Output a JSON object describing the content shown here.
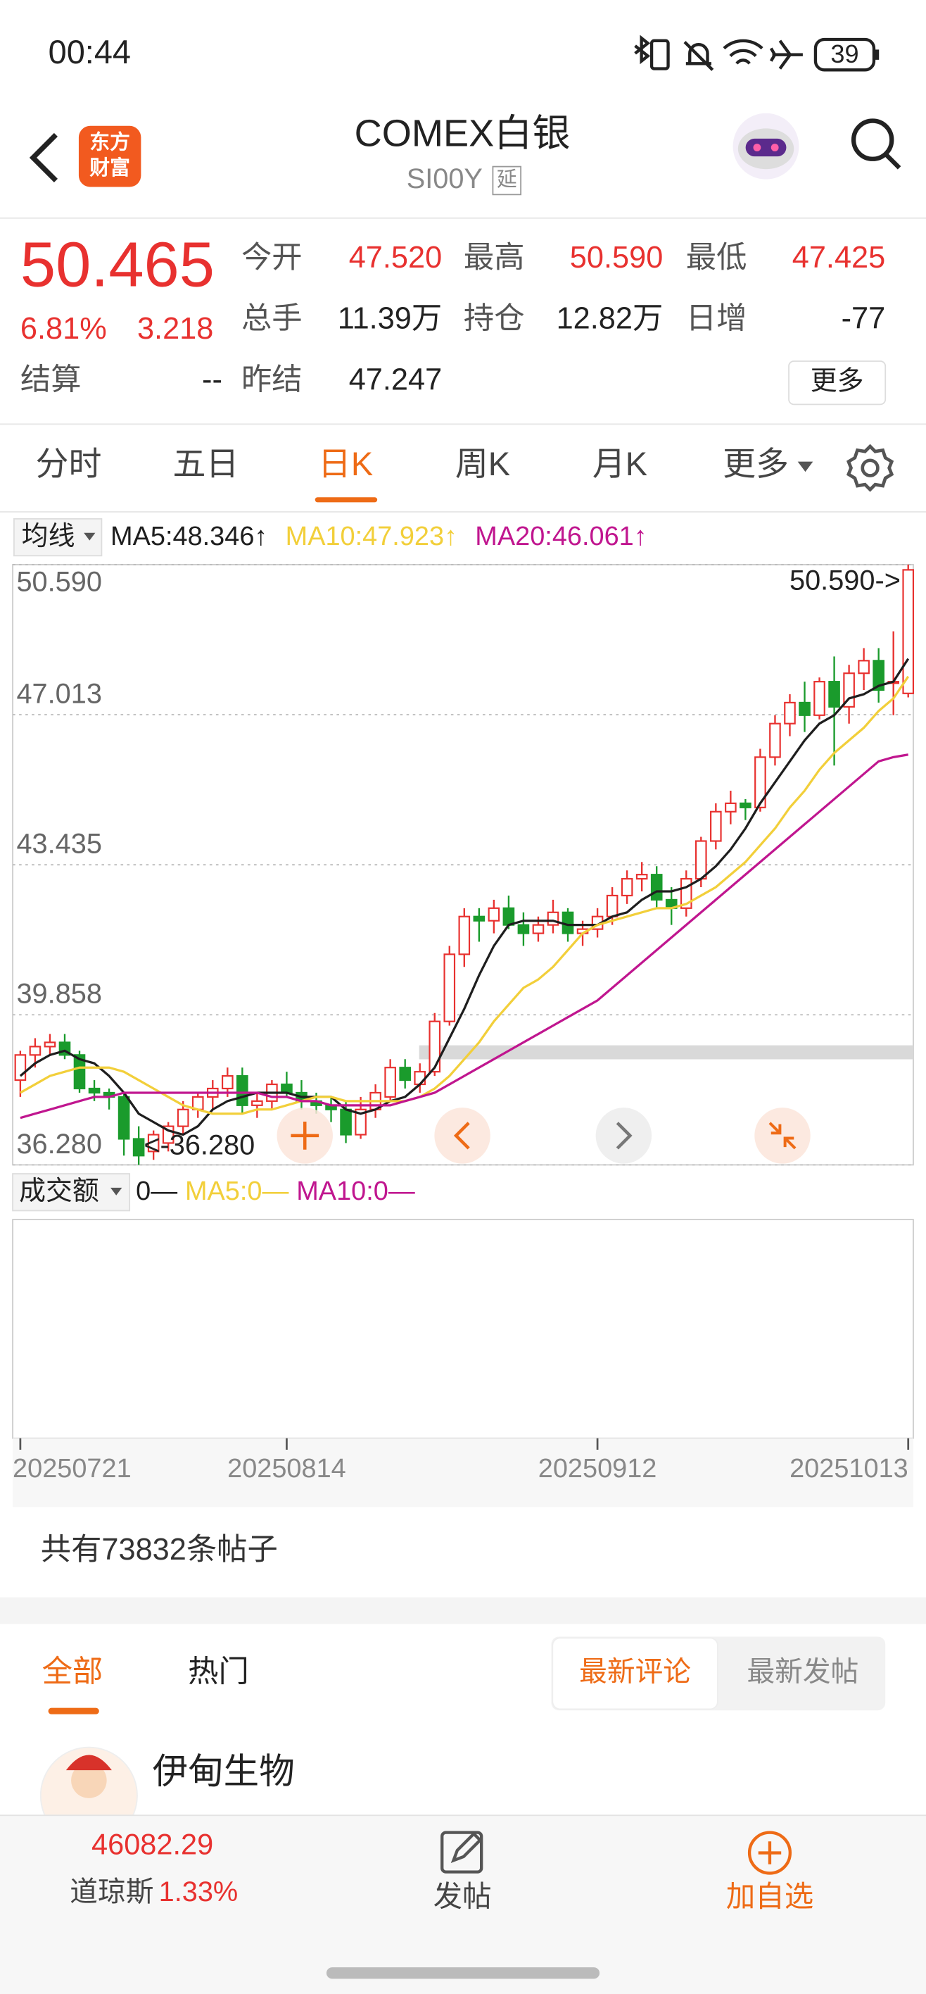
{
  "status_bar": {
    "time": "00:44",
    "battery": "39"
  },
  "header": {
    "logo": [
      "东方",
      "财富"
    ],
    "title": "COMEX白银",
    "code": "SI00Y",
    "tag": "延"
  },
  "quote": {
    "price": "50.465",
    "change_pct": "6.81%",
    "change": "3.218",
    "fields": [
      {
        "label": "今开",
        "value": "47.520"
      },
      {
        "label": "最高",
        "value": "50.590"
      },
      {
        "label": "最低",
        "value": "47.425"
      },
      {
        "label": "总手",
        "value": "11.39万"
      },
      {
        "label": "持仓",
        "value": "12.82万"
      },
      {
        "label": "日增",
        "value": "-77"
      },
      {
        "label": "结算",
        "value": "--"
      },
      {
        "label": "昨结",
        "value": "47.247"
      }
    ],
    "more": "更多"
  },
  "tabs": [
    "分时",
    "五日",
    "日K",
    "周K",
    "月K",
    "更多"
  ],
  "chart_data": {
    "type": "candlestick",
    "indicator_menu": "均线",
    "categories": [
      "20250721",
      null,
      null,
      null,
      null,
      null,
      null,
      null,
      null,
      null,
      null,
      null,
      null,
      null,
      null,
      null,
      null,
      null,
      "20250814",
      null,
      null,
      null,
      null,
      null,
      null,
      null,
      null,
      null,
      null,
      null,
      null,
      null,
      null,
      null,
      null,
      null,
      null,
      null,
      null,
      "20250912",
      null,
      null,
      null,
      null,
      null,
      null,
      null,
      null,
      null,
      null,
      null,
      null,
      null,
      null,
      null,
      null,
      null,
      null,
      null,
      null,
      "20251013"
    ],
    "open": [
      38.3,
      38.9,
      39.1,
      39.2,
      38.9,
      38.1,
      38.0,
      37.9,
      36.9,
      36.6,
      36.8,
      37.2,
      37.6,
      37.9,
      38.1,
      38.4,
      37.7,
      37.8,
      38.2,
      38.0,
      37.8,
      37.7,
      37.6,
      37.0,
      37.6,
      37.9,
      38.6,
      38.2,
      38.5,
      39.7,
      41.3,
      42.2,
      42.1,
      42.4,
      42.0,
      41.8,
      42.0,
      42.3,
      41.8,
      41.9,
      42.2,
      42.7,
      43.1,
      43.2,
      42.6,
      42.4,
      43.1,
      44.0,
      44.7,
      44.9,
      44.8,
      46.0,
      46.8,
      47.3,
      47.0,
      47.8,
      47.2,
      48.0,
      48.3,
      47.8,
      47.52
    ],
    "high": [
      39.0,
      39.3,
      39.4,
      39.4,
      39.0,
      38.3,
      38.1,
      38.0,
      37.2,
      37.1,
      37.3,
      37.8,
      38.0,
      38.3,
      38.6,
      38.6,
      38.0,
      38.3,
      38.5,
      38.3,
      38.0,
      37.9,
      37.8,
      37.9,
      38.2,
      38.8,
      38.8,
      38.7,
      39.9,
      41.5,
      42.4,
      42.4,
      42.6,
      42.7,
      42.3,
      42.2,
      42.6,
      42.4,
      42.1,
      42.4,
      42.9,
      43.3,
      43.5,
      43.4,
      42.9,
      43.3,
      44.1,
      44.9,
      45.2,
      45.0,
      46.2,
      47.0,
      47.5,
      47.8,
      47.9,
      48.4,
      48.2,
      48.6,
      48.6,
      49.0,
      50.59
    ],
    "low": [
      37.9,
      38.6,
      38.9,
      38.8,
      38.0,
      37.8,
      37.6,
      36.5,
      36.28,
      36.4,
      36.6,
      37.0,
      37.4,
      37.6,
      37.9,
      37.5,
      37.4,
      37.6,
      37.9,
      37.6,
      37.5,
      37.3,
      36.8,
      36.9,
      37.4,
      37.8,
      38.1,
      38.0,
      38.4,
      39.6,
      41.0,
      41.6,
      41.8,
      41.9,
      41.5,
      41.6,
      41.8,
      41.6,
      41.5,
      41.7,
      42.0,
      42.5,
      42.8,
      42.4,
      42.0,
      42.2,
      42.9,
      43.8,
      44.4,
      44.5,
      44.7,
      45.8,
      46.5,
      46.6,
      46.9,
      45.8,
      46.8,
      47.6,
      47.3,
      47.0,
      47.425
    ],
    "close": [
      38.9,
      39.1,
      39.2,
      38.9,
      38.1,
      38.0,
      37.9,
      36.9,
      36.5,
      37.0,
      37.2,
      37.6,
      37.9,
      38.1,
      38.4,
      37.7,
      37.8,
      38.2,
      38.0,
      37.8,
      37.7,
      37.6,
      37.0,
      37.6,
      38.0,
      38.6,
      38.3,
      38.5,
      39.7,
      41.3,
      42.2,
      42.1,
      42.4,
      42.0,
      41.8,
      42.0,
      42.3,
      41.8,
      41.9,
      42.2,
      42.7,
      43.1,
      43.2,
      42.6,
      42.4,
      43.1,
      44.0,
      44.7,
      44.9,
      44.8,
      46.0,
      46.8,
      47.3,
      47.0,
      47.8,
      47.2,
      48.0,
      48.3,
      47.6,
      47.8,
      50.465
    ],
    "up_color": "#e8312f",
    "down_color": "#1a9b2c",
    "series": [
      {
        "name": "MA5:48.346↑",
        "color": "#1e1e1e",
        "values": [
          38.4,
          38.7,
          38.9,
          39.0,
          38.8,
          38.7,
          38.4,
          38.0,
          37.5,
          37.3,
          37.1,
          37.0,
          37.2,
          37.6,
          37.8,
          37.9,
          38.0,
          38.0,
          38.0,
          37.9,
          37.9,
          37.9,
          37.6,
          37.5,
          37.6,
          37.8,
          37.9,
          38.2,
          38.6,
          39.3,
          40.0,
          40.8,
          41.5,
          42.0,
          42.1,
          42.1,
          42.1,
          42.0,
          42.0,
          42.0,
          42.2,
          42.3,
          42.6,
          42.8,
          42.8,
          42.9,
          43.1,
          43.4,
          43.8,
          44.3,
          44.9,
          45.4,
          45.9,
          46.4,
          46.8,
          47.0,
          47.4,
          47.5,
          47.7,
          47.8,
          48.346
        ]
      },
      {
        "name": "MA10:47.923↑",
        "color": "#f2cf3a",
        "values": [
          38.0,
          38.2,
          38.4,
          38.5,
          38.6,
          38.6,
          38.6,
          38.5,
          38.3,
          38.1,
          37.9,
          37.7,
          37.6,
          37.5,
          37.5,
          37.5,
          37.6,
          37.6,
          37.7,
          37.8,
          37.9,
          37.9,
          37.8,
          37.8,
          37.8,
          37.8,
          37.8,
          37.9,
          38.1,
          38.4,
          38.8,
          39.2,
          39.7,
          40.1,
          40.5,
          40.7,
          41.0,
          41.4,
          41.8,
          42.0,
          42.1,
          42.2,
          42.3,
          42.4,
          42.4,
          42.5,
          42.7,
          42.9,
          43.2,
          43.5,
          43.9,
          44.3,
          44.8,
          45.2,
          45.7,
          46.1,
          46.4,
          46.7,
          47.1,
          47.4,
          47.923
        ]
      },
      {
        "name": "MA20:46.061↑",
        "color": "#c0168f",
        "values": [
          37.4,
          37.5,
          37.6,
          37.7,
          37.8,
          37.9,
          37.9,
          38.0,
          38.0,
          38.0,
          38.0,
          38.0,
          38.0,
          38.0,
          38.0,
          38.0,
          38.0,
          37.9,
          37.9,
          37.8,
          37.8,
          37.7,
          37.7,
          37.7,
          37.7,
          37.7,
          37.8,
          37.9,
          38.0,
          38.2,
          38.4,
          38.6,
          38.8,
          39.0,
          39.2,
          39.4,
          39.6,
          39.8,
          40.0,
          40.2,
          40.5,
          40.8,
          41.1,
          41.4,
          41.7,
          42.0,
          42.3,
          42.6,
          42.9,
          43.2,
          43.5,
          43.8,
          44.1,
          44.4,
          44.7,
          45.0,
          45.3,
          45.6,
          45.9,
          46.0,
          46.061
        ]
      }
    ],
    "ylim": [
      36.28,
      50.59
    ],
    "yticks": [
      {
        "value": 50.59,
        "label": "50.590"
      },
      {
        "value": 47.013,
        "label": "47.013"
      },
      {
        "value": 43.435,
        "label": "43.435"
      },
      {
        "value": 39.858,
        "label": "39.858"
      },
      {
        "value": 36.28,
        "label": "36.280"
      }
    ],
    "grid": true,
    "max_label": "50.590->",
    "min_label": "<-36.280"
  },
  "volume": {
    "menu": "成交额",
    "legend": [
      {
        "text": "0—",
        "color": "#1e1e1e"
      },
      {
        "text": "MA5:0—",
        "color": "#f2cf3a"
      },
      {
        "text": "MA10:0—",
        "color": "#c0168f"
      }
    ]
  },
  "posts": {
    "count": "共有73832条帖子",
    "tabs": [
      "全部",
      "热门"
    ],
    "sort": [
      "最新评论",
      "最新发帖"
    ],
    "first_user": "伊甸生物"
  },
  "bottom_bar": {
    "index_value": "46082.29",
    "index_name": "道琼斯",
    "index_change": "1.33%",
    "post": "发帖",
    "watch": "加自选"
  }
}
